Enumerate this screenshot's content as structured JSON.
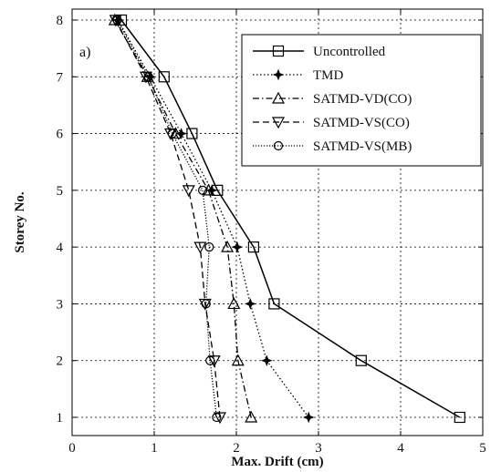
{
  "chart_data": {
    "type": "line",
    "panel_label": "a)",
    "xlabel": "Max. Drift (cm)",
    "ylabel": "Storey No.",
    "xlim": [
      0,
      5
    ],
    "ylim": [
      1,
      8
    ],
    "xticks": [
      0,
      1,
      2,
      3,
      4,
      5
    ],
    "yticks": [
      1,
      2,
      3,
      4,
      5,
      6,
      7,
      8
    ],
    "grid": true,
    "legend_position": "top-right",
    "y": [
      1,
      2,
      3,
      4,
      5,
      6,
      7,
      8
    ],
    "series": [
      {
        "name": "Uncontrolled",
        "x": [
          4.72,
          3.52,
          2.46,
          2.21,
          1.77,
          1.46,
          1.12,
          0.6
        ],
        "y": [
          1,
          2,
          3,
          4,
          5,
          6,
          7,
          8
        ],
        "line_style": "solid",
        "marker": "square"
      },
      {
        "name": "TMD",
        "x": [
          2.88,
          2.37,
          2.17,
          2.01,
          1.7,
          1.33,
          0.95,
          0.56
        ],
        "y": [
          1,
          2,
          3,
          4,
          5,
          6,
          7,
          8
        ],
        "line_style": "dotted",
        "marker": "star"
      },
      {
        "name": "SATMD-VD(CO)",
        "x": [
          2.18,
          2.02,
          1.97,
          1.89,
          1.66,
          1.26,
          0.92,
          0.52
        ],
        "y": [
          1,
          2,
          3,
          4,
          5,
          6,
          7,
          8
        ],
        "line_style": "dashdot",
        "marker": "triangle-up"
      },
      {
        "name": "SATMD-VS(CO)",
        "x": [
          1.8,
          1.73,
          1.62,
          1.56,
          1.42,
          1.2,
          0.9,
          0.53
        ],
        "y": [
          1,
          2,
          3,
          4,
          5,
          6,
          7,
          8
        ],
        "line_style": "dashed",
        "marker": "triangle-down"
      },
      {
        "name": "SATMD-VS(MB)",
        "x": [
          1.76,
          1.68,
          1.63,
          1.67,
          1.59,
          1.22,
          0.93,
          0.55
        ],
        "y": [
          1,
          2,
          3,
          4,
          5,
          6,
          7,
          8
        ],
        "line_style": "dotted-dense",
        "marker": "circle"
      }
    ]
  }
}
